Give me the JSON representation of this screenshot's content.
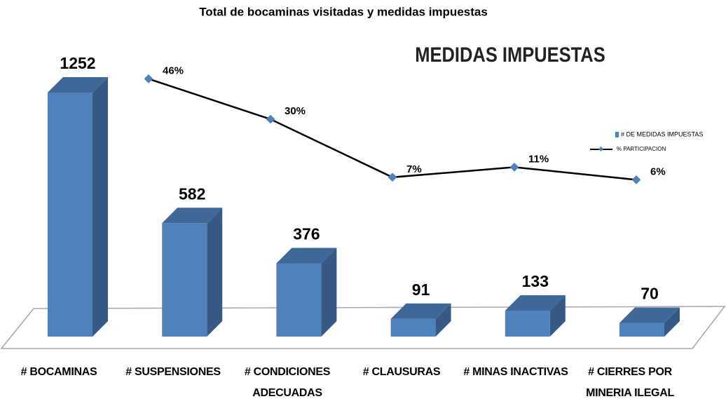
{
  "chart_data": {
    "type": "bar",
    "title": "Total de bocaminas visitadas y medidas impuestas",
    "subtitle": "MEDIDAS IMPUESTAS",
    "categories": [
      "# BOCAMINAS",
      "# SUSPENSIONES",
      "# CONDICIONES ADECUADAS",
      "# CLAUSURAS",
      "# MINAS INACTIVAS",
      "# CIERRES POR MINERIA ILEGAL"
    ],
    "series": [
      {
        "name": "# DE MEDIDAS IMPUESTAS",
        "type": "bar",
        "color": "#4f81bd",
        "values": [
          1252,
          582,
          376,
          91,
          133,
          70
        ]
      },
      {
        "name": "% PARTICIPACION",
        "type": "line",
        "color": "#000000",
        "marker_color": "#4f81bd",
        "values": [
          null,
          46,
          30,
          7,
          11,
          6
        ],
        "value_labels": [
          null,
          "46%",
          "30%",
          "7%",
          "11%",
          "6%"
        ]
      }
    ],
    "legend": "right"
  }
}
